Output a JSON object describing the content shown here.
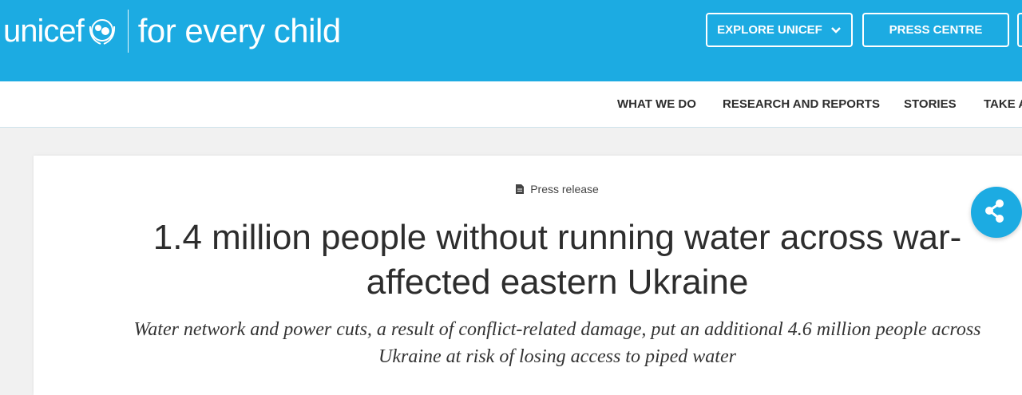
{
  "header": {
    "logo_text": "unicef",
    "tagline": "for every child",
    "explore_label": "EXPLORE UNICEF",
    "press_label": "PRESS CENTRE",
    "brand_color": "#1cabe2"
  },
  "nav": {
    "items": [
      "WHAT WE DO",
      "RESEARCH AND REPORTS",
      "STORIES",
      "TAKE A"
    ]
  },
  "article": {
    "type": "Press release",
    "title": "1.4 million people without running water across war-affected eastern Ukraine",
    "subtitle": "Water network and power cuts, a result of conflict-related damage, put an additional 4.6 million people across Ukraine at risk of losing access to piped water"
  },
  "icons": {
    "share": "share-icon",
    "document": "document-icon",
    "chevron": "chevron-down-icon"
  }
}
